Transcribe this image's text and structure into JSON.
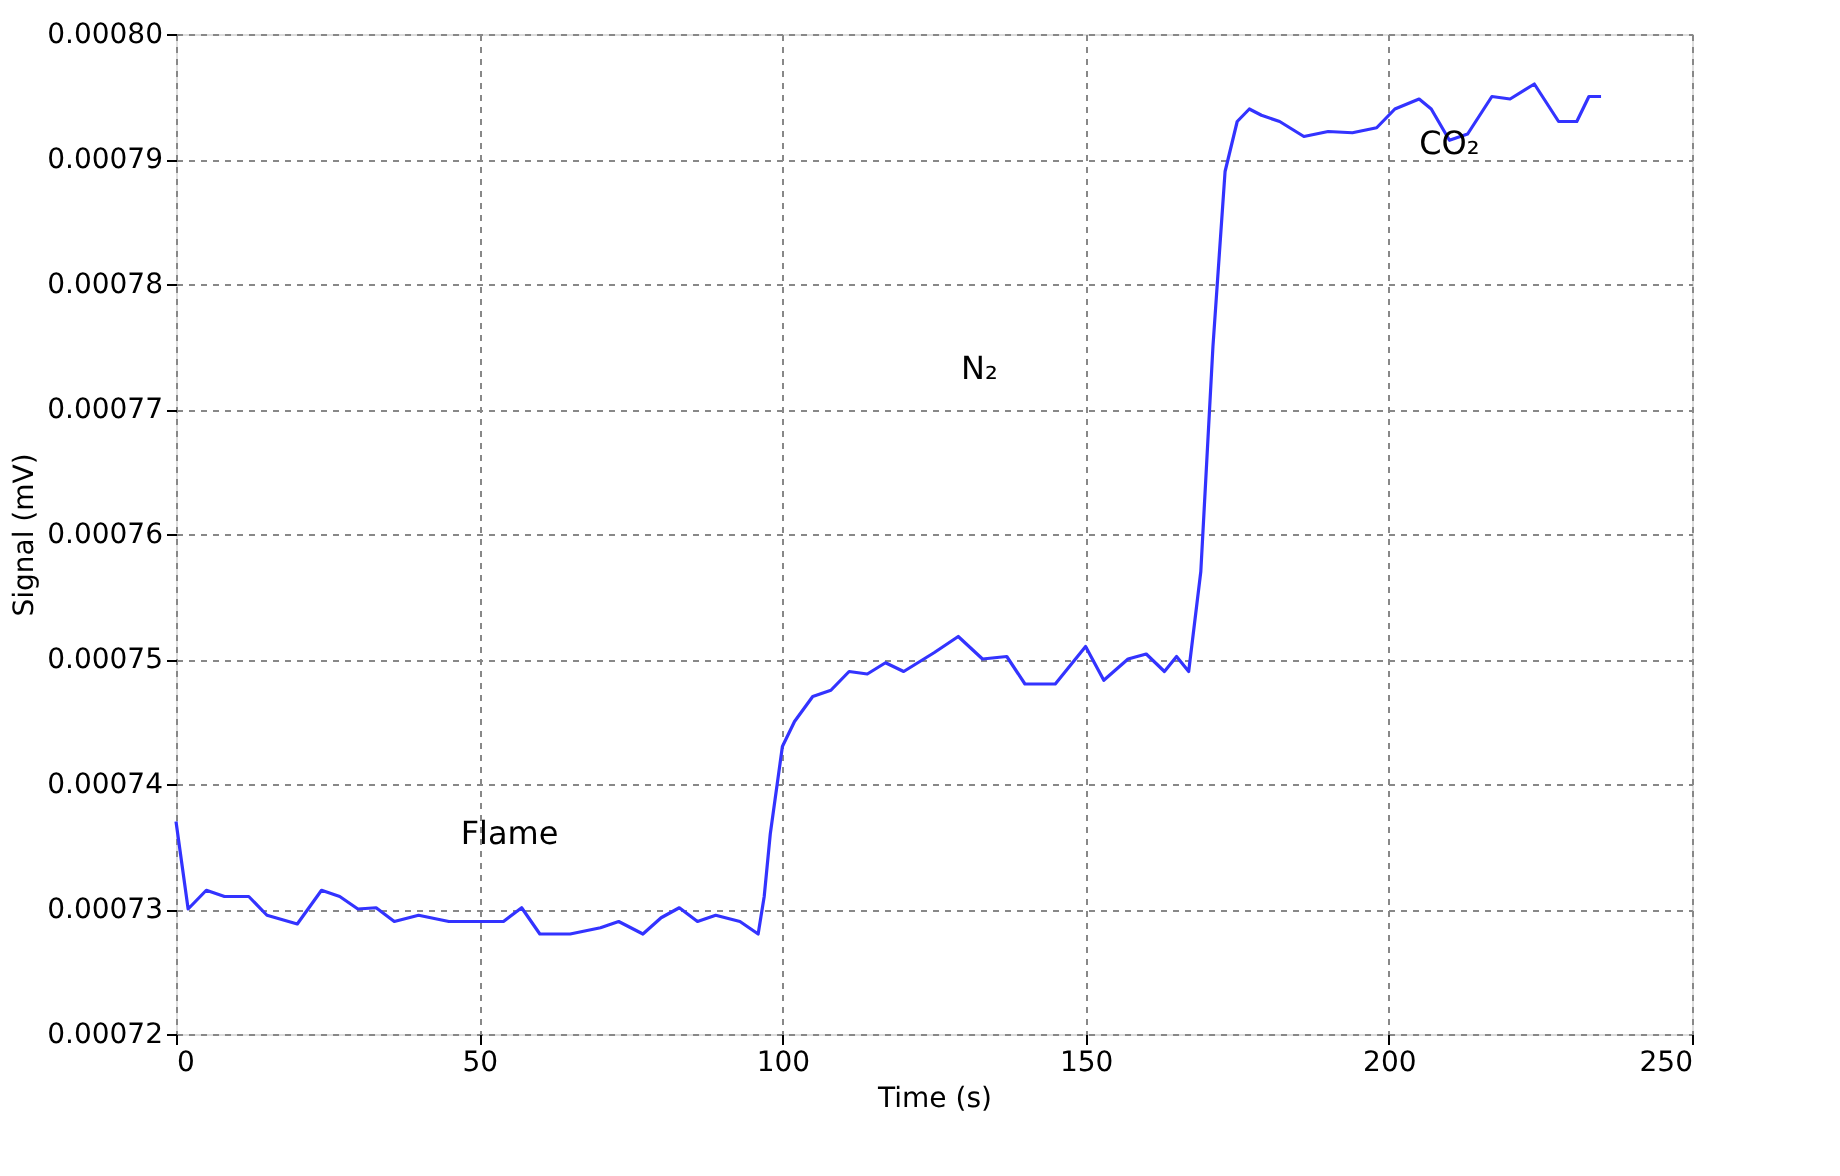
{
  "chart_data": {
    "type": "line",
    "xlabel": "Time (s)",
    "ylabel": "Signal (mV)",
    "xlim": [
      0,
      250
    ],
    "xticks": [
      0,
      50,
      100,
      150,
      200,
      250
    ],
    "ylim": [
      0.00072,
      0.0008
    ],
    "yticks": [
      0.00072,
      0.00073,
      0.00074,
      0.00075,
      0.00076,
      0.00077,
      0.00078,
      0.00079,
      {
        "value": 0.0008,
        "label": "0.00080"
      }
    ],
    "grid": true,
    "marker": "none",
    "line_style": "solid",
    "annotations": [
      "Flame",
      "N₂",
      "CO₂"
    ],
    "series": [
      {
        "color": "#3333ff",
        "x": [
          0,
          2,
          5,
          8,
          12,
          15,
          20,
          24,
          27,
          30,
          33,
          36,
          40,
          45,
          50,
          54,
          57,
          60,
          65,
          70,
          73,
          77,
          80,
          83,
          86,
          89,
          93,
          96,
          97,
          98,
          100,
          102,
          105,
          108,
          111,
          114,
          117,
          120,
          125,
          129,
          133,
          137,
          140,
          145,
          150,
          153,
          157,
          160,
          163,
          165,
          167,
          169,
          171,
          173,
          175,
          177,
          179,
          182,
          186,
          190,
          194,
          198,
          201,
          205,
          207,
          210,
          213,
          217,
          220,
          224,
          228,
          231,
          233,
          235
        ],
        "values": [
          0.000737,
          0.00073,
          0.0007315,
          0.000731,
          0.000731,
          0.0007295,
          0.0007288,
          0.0007315,
          0.000731,
          0.00073,
          0.0007301,
          0.000729,
          0.0007295,
          0.000729,
          0.000729,
          0.000729,
          0.0007301,
          0.000728,
          0.000728,
          0.0007285,
          0.000729,
          0.000728,
          0.0007293,
          0.0007301,
          0.000729,
          0.0007295,
          0.000729,
          0.000728,
          0.000731,
          0.000736,
          0.000743,
          0.000745,
          0.000747,
          0.0007475,
          0.000749,
          0.0007488,
          0.0007497,
          0.000749,
          0.0007505,
          0.0007518,
          0.00075,
          0.0007502,
          0.000748,
          0.000748,
          0.000751,
          0.0007483,
          0.00075,
          0.0007504,
          0.000749,
          0.0007502,
          0.000749,
          0.000757,
          0.000775,
          0.000789,
          0.000793,
          0.000794,
          0.0007935,
          0.000793,
          0.0007918,
          0.0007922,
          0.0007921,
          0.0007925,
          0.000794,
          0.0007948,
          0.000794,
          0.0007915,
          0.000792,
          0.000795,
          0.0007948,
          0.000796,
          0.000793,
          0.000793,
          0.000795,
          0.000795
        ]
      }
    ]
  }
}
